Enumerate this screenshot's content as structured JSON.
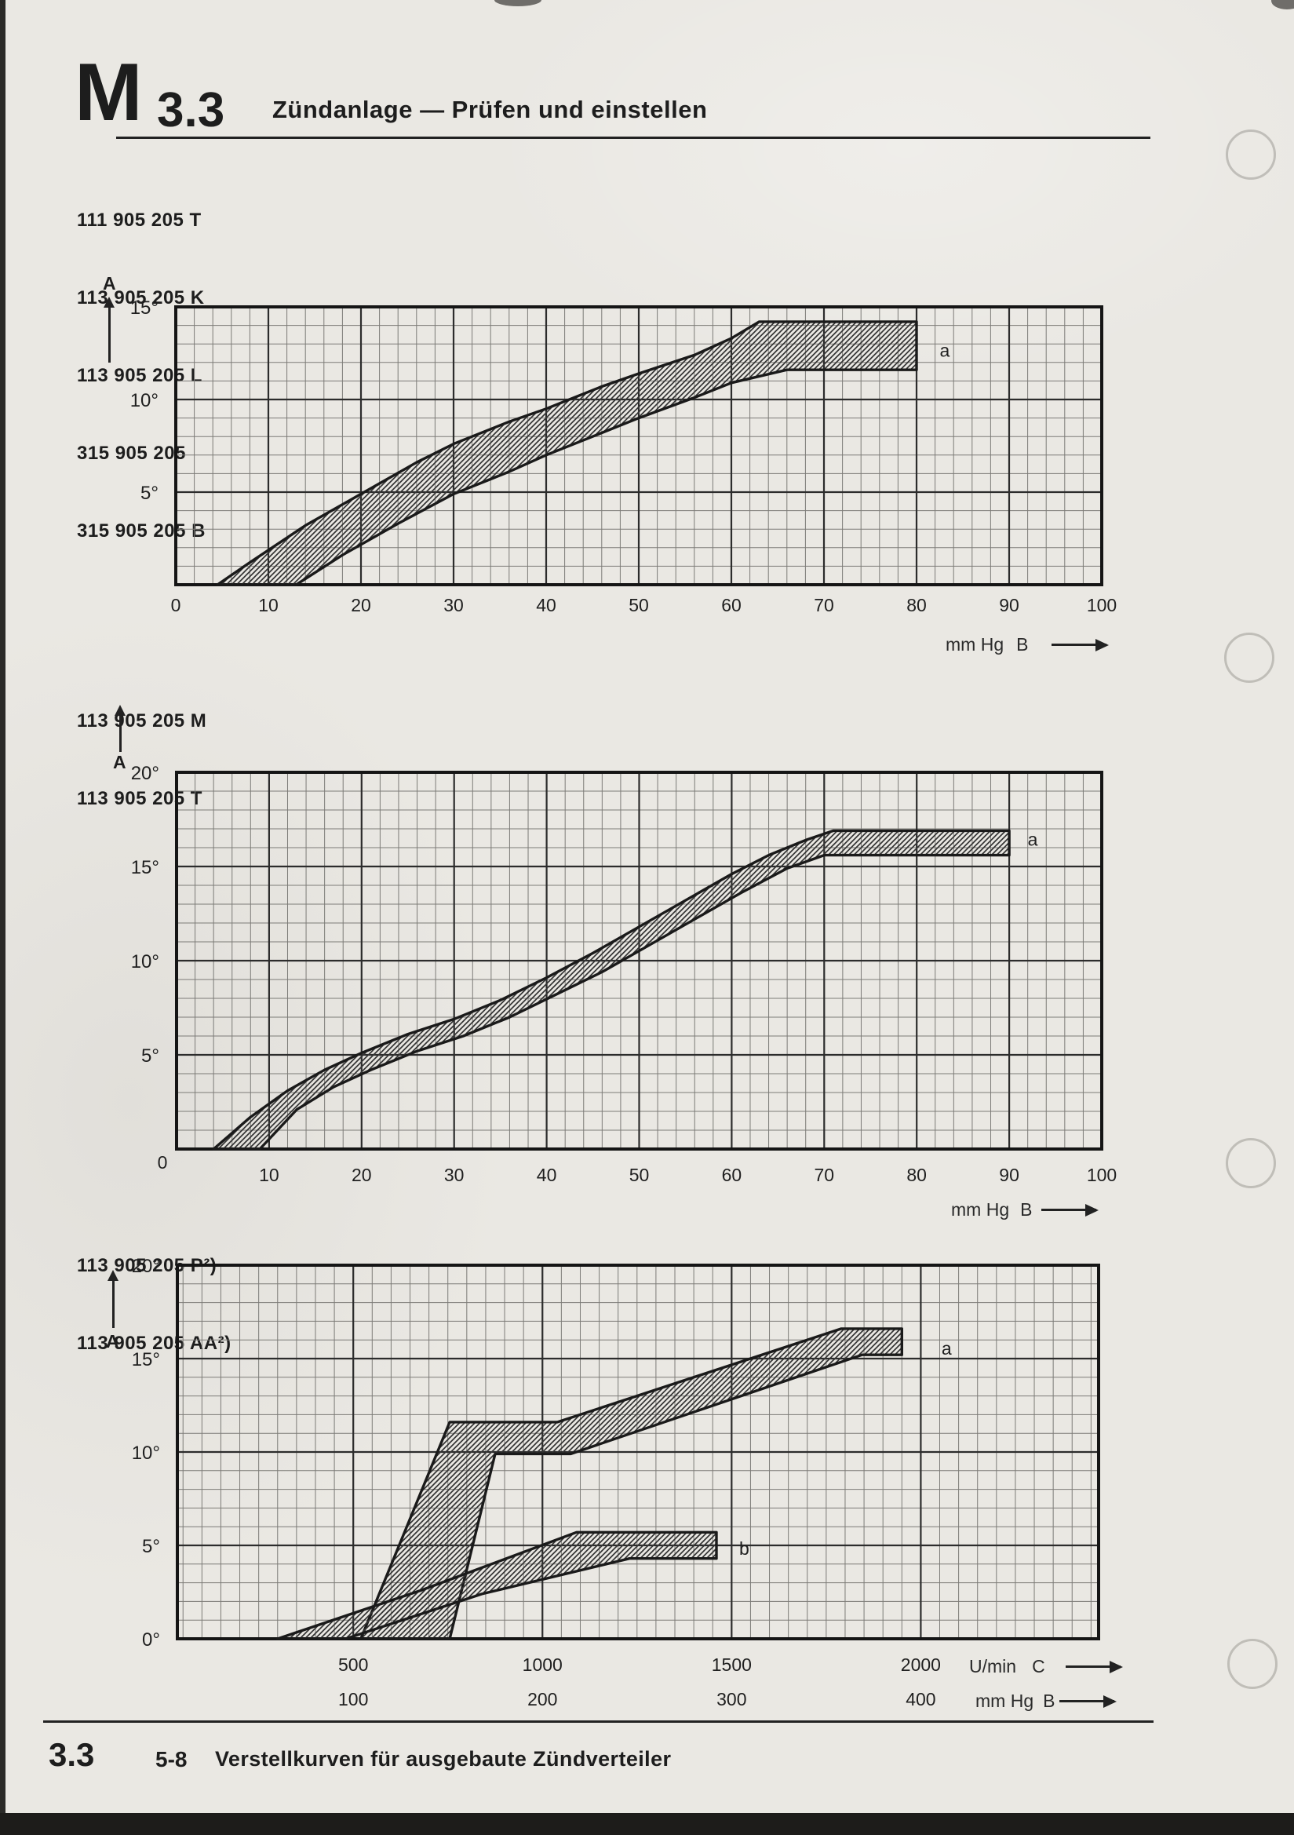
{
  "page": {
    "code_letter": "M",
    "code_number": "3.3",
    "title": "Zündanlage — Prüfen und einstellen",
    "axis_arrow_letter": "A",
    "footer_section": "3.3",
    "footer_page": "5-8",
    "footer_caption": "Verstellkurven für ausgebaute Zündverteiler"
  },
  "chart_data": [
    {
      "type": "area",
      "part_numbers": [
        "111 905 205 T",
        "113 905 205 K",
        "113 905 205 L",
        "315 905 205",
        "315 905 205 B"
      ],
      "x_axis": {
        "min": 0,
        "max": 100,
        "minor_step": 2,
        "major_step": 10,
        "unit": "mm Hg",
        "letter": "B",
        "ticks": [
          {
            "v": 0,
            "label": "0"
          },
          {
            "v": 10,
            "label": "10"
          },
          {
            "v": 20,
            "label": "20"
          },
          {
            "v": 30,
            "label": "30"
          },
          {
            "v": 40,
            "label": "40"
          },
          {
            "v": 50,
            "label": "50"
          },
          {
            "v": 60,
            "label": "60"
          },
          {
            "v": 70,
            "label": "70"
          },
          {
            "v": 80,
            "label": "80"
          },
          {
            "v": 90,
            "label": "90"
          },
          {
            "v": 100,
            "label": "100"
          }
        ]
      },
      "y_axis": {
        "min": 0,
        "max": 15,
        "minor_step": 1,
        "major_step": 5,
        "ticks": [
          {
            "v": 15,
            "label": "15°"
          },
          {
            "v": 10,
            "label": "10°"
          },
          {
            "v": 5,
            "label": "5°"
          }
        ]
      },
      "bands": [
        {
          "name": "a",
          "label": "a",
          "label_at": [
            82.5,
            12.3
          ],
          "upper": [
            [
              4.5,
              0
            ],
            [
              8,
              1.2
            ],
            [
              14,
              3.2
            ],
            [
              20,
              4.9
            ],
            [
              26,
              6.6
            ],
            [
              30,
              7.6
            ],
            [
              36,
              8.8
            ],
            [
              40,
              9.5
            ],
            [
              46,
              10.7
            ],
            [
              50,
              11.4
            ],
            [
              56,
              12.4
            ],
            [
              60,
              13.3
            ],
            [
              63,
              14.2
            ],
            [
              80,
              14.2
            ]
          ],
          "lower": [
            [
              13,
              0
            ],
            [
              18,
              1.6
            ],
            [
              24,
              3.3
            ],
            [
              30,
              4.9
            ],
            [
              36,
              6.1
            ],
            [
              40,
              7.0
            ],
            [
              46,
              8.2
            ],
            [
              50,
              9.0
            ],
            [
              56,
              10.1
            ],
            [
              60,
              10.9
            ],
            [
              66,
              11.6
            ],
            [
              80,
              11.6
            ]
          ]
        }
      ]
    },
    {
      "type": "area",
      "part_numbers": [
        "113 905 205 M",
        "113 905 205 T"
      ],
      "x_axis": {
        "min": 0,
        "max": 100,
        "minor_step": 2,
        "major_step": 10,
        "unit": "mm Hg",
        "letter": "B",
        "ticks": [
          {
            "v": 0,
            "label": "0"
          },
          {
            "v": 10,
            "label": "10"
          },
          {
            "v": 20,
            "label": "20"
          },
          {
            "v": 30,
            "label": "30"
          },
          {
            "v": 40,
            "label": "40"
          },
          {
            "v": 50,
            "label": "50"
          },
          {
            "v": 60,
            "label": "60"
          },
          {
            "v": 70,
            "label": "70"
          },
          {
            "v": 80,
            "label": "80"
          },
          {
            "v": 90,
            "label": "90"
          },
          {
            "v": 100,
            "label": "100"
          }
        ]
      },
      "y_axis": {
        "min": 0,
        "max": 20,
        "minor_step": 1,
        "major_step": 5,
        "ticks": [
          {
            "v": 20,
            "label": "20°"
          },
          {
            "v": 15,
            "label": "15°"
          },
          {
            "v": 10,
            "label": "10°"
          },
          {
            "v": 5,
            "label": "5°"
          }
        ]
      },
      "bands": [
        {
          "name": "a",
          "label": "a",
          "label_at": [
            92,
            16.1
          ],
          "upper": [
            [
              4,
              0
            ],
            [
              8,
              1.7
            ],
            [
              12,
              3.1
            ],
            [
              16,
              4.2
            ],
            [
              20,
              5.1
            ],
            [
              25,
              6.1
            ],
            [
              30,
              6.9
            ],
            [
              35,
              7.9
            ],
            [
              40,
              9.1
            ],
            [
              45,
              10.4
            ],
            [
              50,
              11.8
            ],
            [
              55,
              13.2
            ],
            [
              60,
              14.6
            ],
            [
              64,
              15.6
            ],
            [
              68,
              16.4
            ],
            [
              71,
              16.9
            ],
            [
              90,
              16.9
            ]
          ],
          "lower": [
            [
              9,
              0
            ],
            [
              13,
              2.1
            ],
            [
              17,
              3.3
            ],
            [
              21,
              4.2
            ],
            [
              26,
              5.2
            ],
            [
              31,
              6.0
            ],
            [
              36,
              7.0
            ],
            [
              41,
              8.2
            ],
            [
              46,
              9.4
            ],
            [
              51,
              10.8
            ],
            [
              56,
              12.2
            ],
            [
              61,
              13.6
            ],
            [
              66,
              14.9
            ],
            [
              70,
              15.6
            ],
            [
              90,
              15.6
            ]
          ]
        }
      ]
    },
    {
      "type": "area",
      "part_numbers": [
        "113 905 205 P²)",
        "113 905 205 AA²)"
      ],
      "x_axis": {
        "min": 35,
        "max": 2470,
        "minor_step": 50,
        "major_step": 500,
        "rows": [
          {
            "unit": "U/min",
            "letter": "C",
            "ticks": [
              {
                "v": 500,
                "label": "500"
              },
              {
                "v": 1000,
                "label": "1000"
              },
              {
                "v": 1500,
                "label": "1500"
              },
              {
                "v": 2000,
                "label": "2000"
              }
            ]
          },
          {
            "unit": "mm Hg",
            "letter": "B",
            "ticks": [
              {
                "v": 500,
                "label": "100"
              },
              {
                "v": 1000,
                "label": "200"
              },
              {
                "v": 1500,
                "label": "300"
              },
              {
                "v": 2000,
                "label": "400"
              }
            ]
          }
        ]
      },
      "y_axis": {
        "min": 0,
        "max": 20,
        "minor_step": 1,
        "major_step": 5,
        "ticks": [
          {
            "v": 20,
            "label": "20°"
          },
          {
            "v": 15,
            "label": "15°"
          },
          {
            "v": 10,
            "label": "10°"
          },
          {
            "v": 5,
            "label": "5°"
          },
          {
            "v": 0,
            "label": "0°"
          }
        ]
      },
      "bands": [
        {
          "name": "a",
          "label": "a",
          "label_at": [
            2055,
            15.2
          ],
          "upper": [
            [
              520,
              0
            ],
            [
              755,
              11.6
            ],
            [
              1040,
              11.6
            ],
            [
              1790,
              16.6
            ],
            [
              1950,
              16.6
            ]
          ],
          "lower": [
            [
              755,
              0
            ],
            [
              875,
              9.9
            ],
            [
              1075,
              9.9
            ],
            [
              1845,
              15.2
            ],
            [
              1950,
              15.2
            ]
          ]
        },
        {
          "name": "b",
          "label": "b",
          "label_at": [
            1520,
            4.5
          ],
          "upper": [
            [
              300,
              0
            ],
            [
              680,
              2.6
            ],
            [
              1090,
              5.7
            ],
            [
              1460,
              5.7
            ]
          ],
          "lower": [
            [
              480,
              0
            ],
            [
              840,
              2.4
            ],
            [
              1230,
              4.3
            ],
            [
              1460,
              4.3
            ]
          ]
        }
      ]
    }
  ]
}
